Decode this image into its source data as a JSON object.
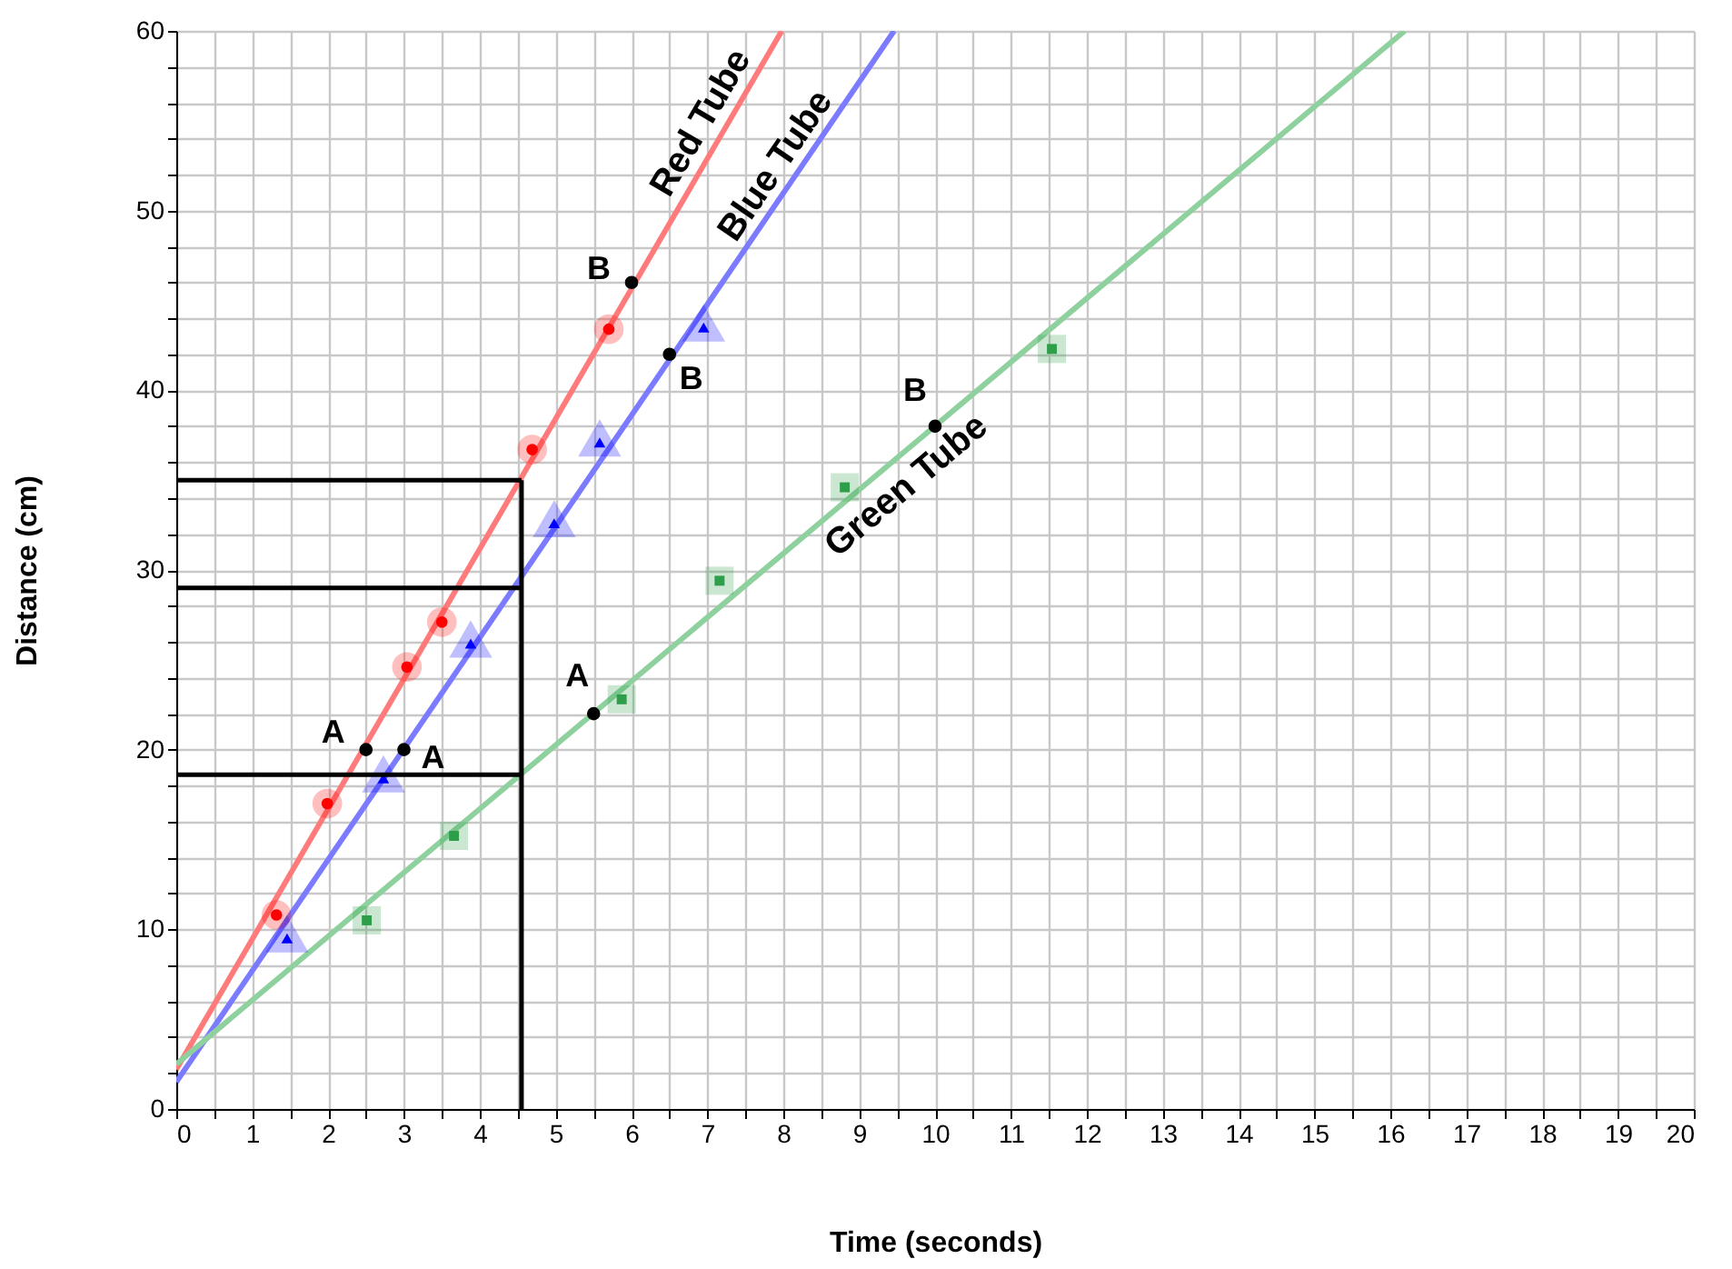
{
  "chart_data": {
    "type": "line",
    "xlabel": "Time (seconds)",
    "ylabel": "Distance (cm)",
    "xlim": [
      0,
      20
    ],
    "ylim": [
      0,
      60
    ],
    "xticks": [
      0,
      {
        "value": 0.5,
        "label": null
      },
      1,
      {
        "value": 1.5,
        "label": null
      },
      2,
      {
        "value": 2.5,
        "label": null
      },
      3,
      {
        "value": 3.5,
        "label": null
      },
      4,
      {
        "value": 4.5,
        "label": null
      },
      5,
      {
        "value": 5.5,
        "label": null
      },
      6,
      {
        "value": 6.5,
        "label": null
      },
      7,
      {
        "value": 7.5,
        "label": null
      },
      8,
      {
        "value": 8.5,
        "label": null
      },
      9,
      {
        "value": 9.5,
        "label": null
      },
      10,
      {
        "value": 10.5,
        "label": null
      },
      11,
      {
        "value": 11.5,
        "label": null
      },
      12,
      {
        "value": 12.5,
        "label": null
      },
      13,
      {
        "value": 13.5,
        "label": null
      },
      14,
      {
        "value": 14.5,
        "label": null
      },
      15,
      {
        "value": 15.5,
        "label": null
      },
      16,
      {
        "value": 16.5,
        "label": null
      },
      17,
      {
        "value": 17.5,
        "label": null
      },
      18,
      {
        "value": 18.5,
        "label": null
      },
      19,
      {
        "value": 19.5,
        "label": null
      },
      20
    ],
    "yticks": [
      0,
      {
        "value": 2,
        "label": null
      },
      {
        "value": 4,
        "label": null
      },
      {
        "value": 6,
        "label": null
      },
      {
        "value": 8,
        "label": null
      },
      10,
      {
        "value": 12,
        "label": null
      },
      {
        "value": 14,
        "label": null
      },
      {
        "value": 16,
        "label": null
      },
      {
        "value": 18,
        "label": null
      },
      20,
      {
        "value": 22,
        "label": null
      },
      {
        "value": 24,
        "label": null
      },
      {
        "value": 26,
        "label": null
      },
      {
        "value": 28,
        "label": null
      },
      30,
      {
        "value": 32,
        "label": null
      },
      {
        "value": 34,
        "label": null
      },
      {
        "value": 36,
        "label": null
      },
      {
        "value": 38,
        "label": null
      },
      40,
      {
        "value": 42,
        "label": null
      },
      {
        "value": 44,
        "label": null
      },
      {
        "value": 46,
        "label": null
      },
      {
        "value": 48,
        "label": null
      },
      50,
      {
        "value": 52,
        "label": null
      },
      {
        "value": 54,
        "label": null
      },
      {
        "value": 56,
        "label": null
      },
      {
        "value": 58,
        "label": null
      },
      60
    ],
    "grid": true,
    "series": [
      {
        "name": "Red Tube",
        "color": "#ff7b7b",
        "x": [
          0,
          7.98
        ],
        "values": [
          2.2,
          60
        ]
      },
      {
        "name": "Blue Tube",
        "color": "#7b7bff",
        "x": [
          0,
          9.46
        ],
        "values": [
          1.5,
          60
        ]
      },
      {
        "name": "Green Tube",
        "color": "#8fd19e",
        "x": [
          0,
          16.19
        ],
        "values": [
          2.5,
          60
        ]
      },
      {
        "type": "scatter",
        "marker": "circle",
        "color": "#ff0000",
        "x": [
          1.32,
          1.99,
          3.04,
          3.5,
          4.69,
          5.7
        ],
        "values": [
          10.8,
          17,
          24.6,
          27.1,
          36.7,
          43.4
        ]
      },
      {
        "type": "scatter",
        "marker": "triangle",
        "color": "#0000ff",
        "x": [
          1.46,
          2.73,
          3.88,
          4.98,
          5.58,
          6.95
        ],
        "values": [
          9.5,
          18.4,
          25.9,
          32.6,
          37.1,
          43.5
        ]
      },
      {
        "type": "scatter",
        "marker": "square",
        "color": "#2e9e4a",
        "x": [
          2.51,
          3.66,
          5.87,
          7.16,
          8.81,
          11.54
        ],
        "values": [
          10.5,
          15.2,
          22.8,
          29.4,
          34.6,
          42.3
        ]
      },
      {
        "type": "scatter",
        "marker": "circle",
        "color": "#000000",
        "x": [
          2.5,
          3,
          5.5,
          6,
          6.5,
          10
        ],
        "values": [
          20,
          20,
          22,
          46,
          42,
          38
        ]
      },
      {
        "type": "line",
        "color": "#000000",
        "x": [
          4.55,
          4.55
        ],
        "values": [
          0,
          35
        ]
      },
      {
        "type": "line",
        "color": "#000000",
        "x": [
          0,
          4.55
        ],
        "values": [
          35,
          35
        ]
      },
      {
        "type": "line",
        "color": "#000000",
        "x": [
          0,
          4.55
        ],
        "values": [
          29,
          29
        ]
      },
      {
        "type": "line",
        "color": "#000000",
        "x": [
          0,
          4.55
        ],
        "values": [
          18.6,
          18.6
        ]
      }
    ],
    "annotations": [
      {
        "text": "A",
        "x": 2.5,
        "y": 20
      },
      {
        "text": "A",
        "x": 3,
        "y": 20
      },
      {
        "text": "A",
        "x": 5.5,
        "y": 22
      },
      {
        "text": "B",
        "x": 6,
        "y": 46
      },
      {
        "text": "B",
        "x": 6.5,
        "y": 42
      },
      {
        "text": "B",
        "x": 10,
        "y": 38
      }
    ]
  }
}
